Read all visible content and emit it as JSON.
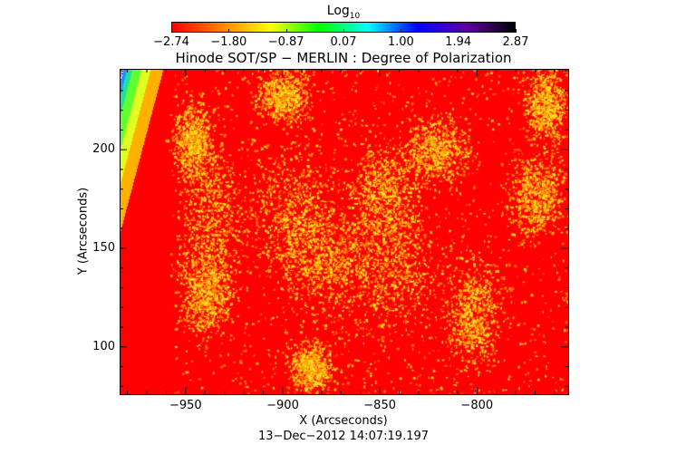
{
  "chart_data": {
    "type": "heatmap",
    "title": "Hinode SOT/SP − MERLIN : Degree of Polarization",
    "xlabel": "X (Arcseconds)",
    "ylabel": "Y (Arcseconds)",
    "xlim": [
      -984,
      -753
    ],
    "ylim": [
      76,
      241
    ],
    "x_ticks": [
      -950,
      -900,
      -850,
      -800
    ],
    "x_tick_labels": [
      "−950",
      "−900",
      "−850",
      "−800"
    ],
    "y_ticks": [
      100,
      150,
      200
    ],
    "y_tick_labels": [
      "100",
      "150",
      "200"
    ],
    "colorbar": {
      "label": "Log10",
      "label_base": "Log",
      "label_sub": "10",
      "range": [
        -2.74,
        2.87
      ],
      "tick_labels": [
        "−2.74",
        "−1.80",
        "−0.87",
        "0.07",
        "1.00",
        "1.94",
        "2.87"
      ],
      "colors": [
        "#ff0000",
        "#ff8000",
        "#ffff00",
        "#00ff00",
        "#00ffff",
        "#0000ff",
        "#6000a0",
        "#000000"
      ]
    },
    "timestamp": "13−Dec−2012 14:07:19.197",
    "colors": {
      "background_field": "#ff0000",
      "magnetic_patches": "#ffff20",
      "off_limb": "#ffffff"
    }
  }
}
